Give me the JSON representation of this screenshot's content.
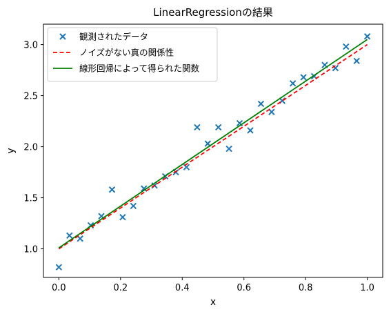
{
  "chart_data": {
    "type": "scatter",
    "title": "LinearRegressionの結果",
    "xlabel": "x",
    "ylabel": "y",
    "xlim": [
      -0.05,
      1.05
    ],
    "ylim": [
      0.72,
      3.2
    ],
    "xticks": [
      0.0,
      0.2,
      0.4,
      0.6,
      0.8,
      1.0
    ],
    "xtick_labels": [
      "0.0",
      "0.2",
      "0.4",
      "0.6",
      "0.8",
      "1.0"
    ],
    "yticks": [
      1.0,
      1.5,
      2.0,
      2.5,
      3.0
    ],
    "ytick_labels": [
      "1.0",
      "1.5",
      "2.0",
      "2.5",
      "3.0"
    ],
    "grid": false,
    "legend_position": "top-left",
    "series": [
      {
        "name": "観測されたデータ",
        "kind": "scatter",
        "marker": "x",
        "color": "#1f77b4",
        "x": [
          0.0,
          0.0345,
          0.069,
          0.1034,
          0.1379,
          0.1724,
          0.2069,
          0.2414,
          0.2759,
          0.3103,
          0.3448,
          0.3793,
          0.4138,
          0.4483,
          0.4828,
          0.5172,
          0.5517,
          0.5862,
          0.6207,
          0.6552,
          0.6897,
          0.7241,
          0.7586,
          0.7931,
          0.8276,
          0.8621,
          0.8966,
          0.931,
          0.9655,
          1.0
        ],
        "y": [
          0.82,
          1.13,
          1.1,
          1.23,
          1.32,
          1.58,
          1.31,
          1.42,
          1.59,
          1.62,
          1.71,
          1.75,
          1.8,
          2.19,
          2.03,
          2.19,
          1.98,
          2.23,
          2.16,
          2.42,
          2.34,
          2.45,
          2.62,
          2.68,
          2.69,
          2.8,
          2.77,
          2.98,
          2.84,
          3.08
        ]
      },
      {
        "name": "ノイズがない真の関係性",
        "kind": "line",
        "style": "dashed",
        "color": "#ff0000",
        "x": [
          0.0,
          1.0
        ],
        "y": [
          1.0,
          3.0
        ]
      },
      {
        "name": "線形回帰によって得られた関数",
        "kind": "line",
        "style": "solid",
        "color": "#008000",
        "x": [
          0.0,
          1.0
        ],
        "y": [
          1.01,
          3.05
        ]
      }
    ]
  }
}
